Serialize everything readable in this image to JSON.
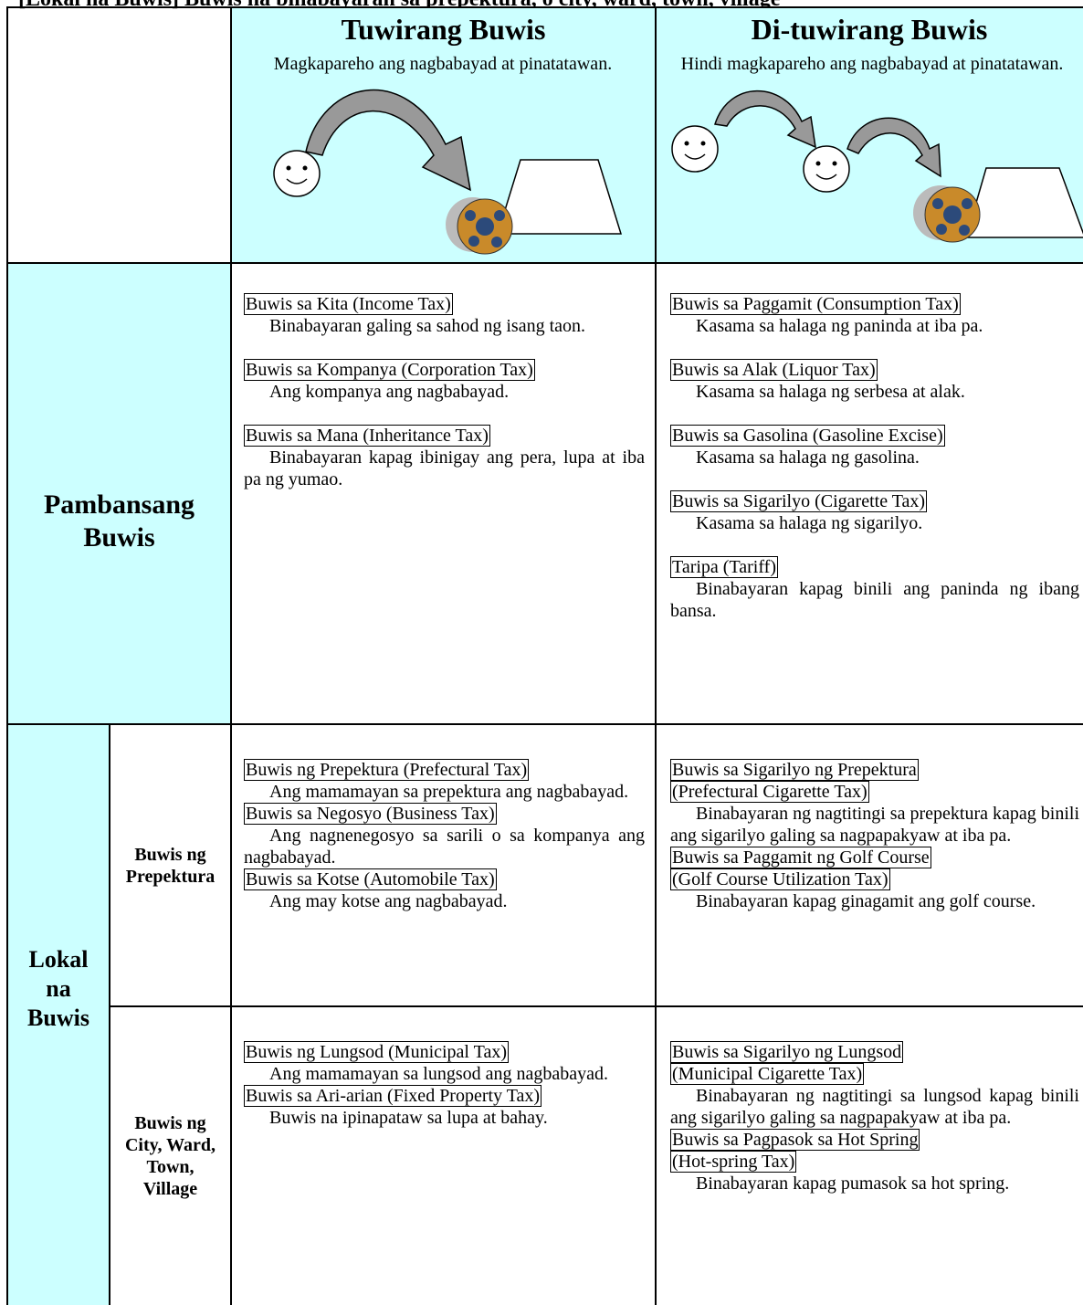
{
  "title": "[Lokal na Buwis] Buwis na binabayaran sa prepektura, o city, ward, town, village",
  "header": {
    "direct": {
      "title": "Tuwirang Buwis",
      "subtitle": "Magkapareho ang nagbabayad at pinatatawan."
    },
    "indirect": {
      "title": "Di-tuwirang Buwis",
      "subtitle": "Hindi magkapareho ang nagbabayad at pinatatawan."
    }
  },
  "national": {
    "label": "Pambansang Buwis",
    "direct": [
      {
        "name": [
          "Buwis sa Kita (Income Tax)"
        ],
        "desc": "Binabayaran galing sa sahod ng isang taon."
      },
      {
        "name": [
          "Buwis sa Kompanya (Corporation Tax)"
        ],
        "desc": "Ang kompanya ang nagbabayad."
      },
      {
        "name": [
          "Buwis sa Mana (Inheritance Tax)"
        ],
        "desc": "Binabayaran kapag ibinigay ang pera, lupa at iba pa ng yumao."
      }
    ],
    "indirect": [
      {
        "name": [
          "Buwis sa Paggamit (Consumption Tax)"
        ],
        "desc": "Kasama sa halaga ng paninda at iba pa."
      },
      {
        "name": [
          "Buwis sa Alak (Liquor Tax)"
        ],
        "desc": "Kasama sa halaga ng serbesa at alak."
      },
      {
        "name": [
          "Buwis sa Gasolina (Gasoline Excise)"
        ],
        "desc": "Kasama sa halaga ng gasolina."
      },
      {
        "name": [
          "Buwis sa Sigarilyo (Cigarette Tax)"
        ],
        "desc": "Kasama sa halaga ng sigarilyo."
      },
      {
        "name": [
          "Taripa (Tariff)"
        ],
        "desc": "Binabayaran kapag binili ang paninda ng ibang bansa."
      }
    ]
  },
  "local": {
    "label": "Lokal na Buwis",
    "subrows": [
      {
        "label": "Buwis ng Prepektura",
        "direct": [
          {
            "name": [
              "Buwis ng Prepektura (Prefectural Tax)"
            ],
            "desc": "Ang mamamayan sa prepektura ang nagbabayad."
          },
          {
            "name": [
              "Buwis sa Negosyo (Business Tax)"
            ],
            "desc": "Ang nagnenegosyo sa sarili o sa kompanya ang nagbabayad."
          },
          {
            "name": [
              "Buwis sa Kotse (Automobile Tax)"
            ],
            "desc": "Ang may kotse ang nagbabayad."
          }
        ],
        "indirect": [
          {
            "name": [
              "Buwis sa Sigarilyo ng Prepektura",
              "(Prefectural Cigarette Tax)"
            ],
            "desc": "Binabayaran ng nagtitingi sa prepektura kapag binili ang sigarilyo galing sa nagpapakyaw at iba pa."
          },
          {
            "name": [
              "Buwis sa Paggamit ng Golf Course",
              "(Golf Course Utilization Tax)"
            ],
            "desc": "Binabayaran kapag ginagamit ang golf course."
          }
        ]
      },
      {
        "label": "Buwis ng City, Ward, Town, Village",
        "direct": [
          {
            "name": [
              "Buwis ng Lungsod (Municipal Tax)"
            ],
            "desc": "Ang mamamayan sa lungsod ang nagbabayad."
          },
          {
            "name": [
              "Buwis sa Ari-arian (Fixed Property Tax)"
            ],
            "desc": "Buwis na ipinapataw sa lupa at bahay."
          }
        ],
        "indirect": [
          {
            "name": [
              "Buwis sa Sigarilyo ng Lungsod",
              "(Municipal Cigarette Tax)"
            ],
            "desc": "Binabayaran ng nagtitingi sa lungsod kapag binili ang sigarilyo galing sa nagpapakyaw at iba pa."
          },
          {
            "name": [
              "Buwis sa Pagpasok sa Hot Spring",
              "(Hot-spring Tax)"
            ],
            "desc": "Binabayaran kapag pumasok sa hot spring."
          }
        ]
      }
    ]
  }
}
